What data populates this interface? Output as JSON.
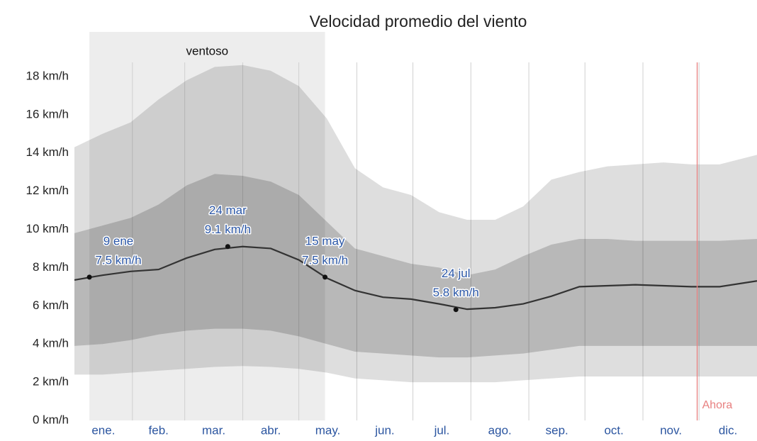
{
  "chart_data": {
    "type": "band-line",
    "title": "Velocidad promedio del viento",
    "xlim": [
      0,
      365
    ],
    "ylim": [
      0,
      20
    ],
    "yticks": [
      {
        "value": 0,
        "label": "0 km/h"
      },
      {
        "value": 2,
        "label": "2 km/h"
      },
      {
        "value": 4,
        "label": "4 km/h"
      },
      {
        "value": 6,
        "label": "6 km/h"
      },
      {
        "value": 8,
        "label": "8 km/h"
      },
      {
        "value": 10,
        "label": "10 km/h"
      },
      {
        "value": 12,
        "label": "12 km/h"
      },
      {
        "value": 14,
        "label": "14 km/h"
      },
      {
        "value": 16,
        "label": "16 km/h"
      },
      {
        "value": 18,
        "label": "18 km/h"
      }
    ],
    "categories": [
      "ene.",
      "feb.",
      "mar.",
      "abr.",
      "may.",
      "jun.",
      "jul.",
      "ago.",
      "sep.",
      "oct.",
      "nov.",
      "dic."
    ],
    "xticks": [
      31,
      59,
      90,
      120,
      151,
      181,
      212,
      243,
      273,
      304,
      334
    ],
    "xgrid": true,
    "x": [
      0,
      15,
      30,
      45,
      60,
      75,
      90,
      105,
      120,
      135,
      150,
      165,
      180,
      195,
      210,
      225,
      240,
      255,
      270,
      285,
      300,
      315,
      330,
      345,
      365
    ],
    "bands": [
      {
        "color": "rgba(0,0,0,0.13)",
        "upper": [
          14.3,
          15.0,
          15.6,
          16.8,
          17.8,
          18.5,
          18.6,
          18.3,
          17.5,
          15.8,
          13.2,
          12.2,
          11.8,
          10.9,
          10.5,
          10.5,
          11.2,
          12.6,
          13.0,
          13.3,
          13.4,
          13.5,
          13.4,
          13.4,
          13.9
        ],
        "lower": [
          2.4,
          2.4,
          2.5,
          2.6,
          2.7,
          2.8,
          2.85,
          2.8,
          2.7,
          2.5,
          2.2,
          2.1,
          2.0,
          2.0,
          2.0,
          2.0,
          2.1,
          2.2,
          2.3,
          2.3,
          2.3,
          2.3,
          2.3,
          2.3,
          2.3
        ]
      },
      {
        "color": "rgba(0,0,0,0.17)",
        "upper": [
          9.8,
          10.2,
          10.6,
          11.3,
          12.3,
          12.9,
          12.8,
          12.5,
          11.8,
          10.4,
          9.0,
          8.6,
          8.2,
          8.0,
          7.6,
          7.9,
          8.6,
          9.2,
          9.5,
          9.5,
          9.4,
          9.4,
          9.4,
          9.4,
          9.5
        ],
        "lower": [
          3.9,
          4.0,
          4.2,
          4.5,
          4.7,
          4.8,
          4.8,
          4.7,
          4.4,
          4.0,
          3.6,
          3.5,
          3.4,
          3.3,
          3.3,
          3.4,
          3.5,
          3.7,
          3.9,
          3.9,
          3.9,
          3.9,
          3.9,
          3.9,
          3.9
        ]
      }
    ],
    "series": [
      {
        "color": "#333333",
        "values": [
          7.35,
          7.6,
          7.8,
          7.9,
          8.5,
          8.95,
          9.1,
          9.0,
          8.4,
          7.45,
          6.8,
          6.45,
          6.35,
          6.1,
          5.82,
          5.9,
          6.1,
          6.5,
          7.0,
          7.05,
          7.1,
          7.05,
          7.0,
          7.0,
          7.3
        ]
      }
    ],
    "annotations": [
      {
        "x": 8,
        "value": 7.5,
        "date": "9 ene",
        "value_label": "7.5 km/h"
      },
      {
        "x": 82,
        "value": 9.1,
        "date": "24 mar",
        "value_label": "9.1 km/h"
      },
      {
        "x": 134,
        "value": 7.5,
        "date": "15 may",
        "value_label": "7.5 km/h"
      },
      {
        "x": 204,
        "value": 5.8,
        "date": "24 jul",
        "value_label": "5.8 km/h"
      }
    ],
    "region": {
      "label": "ventoso",
      "start": 8,
      "end": 134,
      "color": "rgba(0,0,0,0.07)"
    },
    "marker": {
      "label": "Ahora",
      "x": 333,
      "color": "#e88080"
    }
  }
}
